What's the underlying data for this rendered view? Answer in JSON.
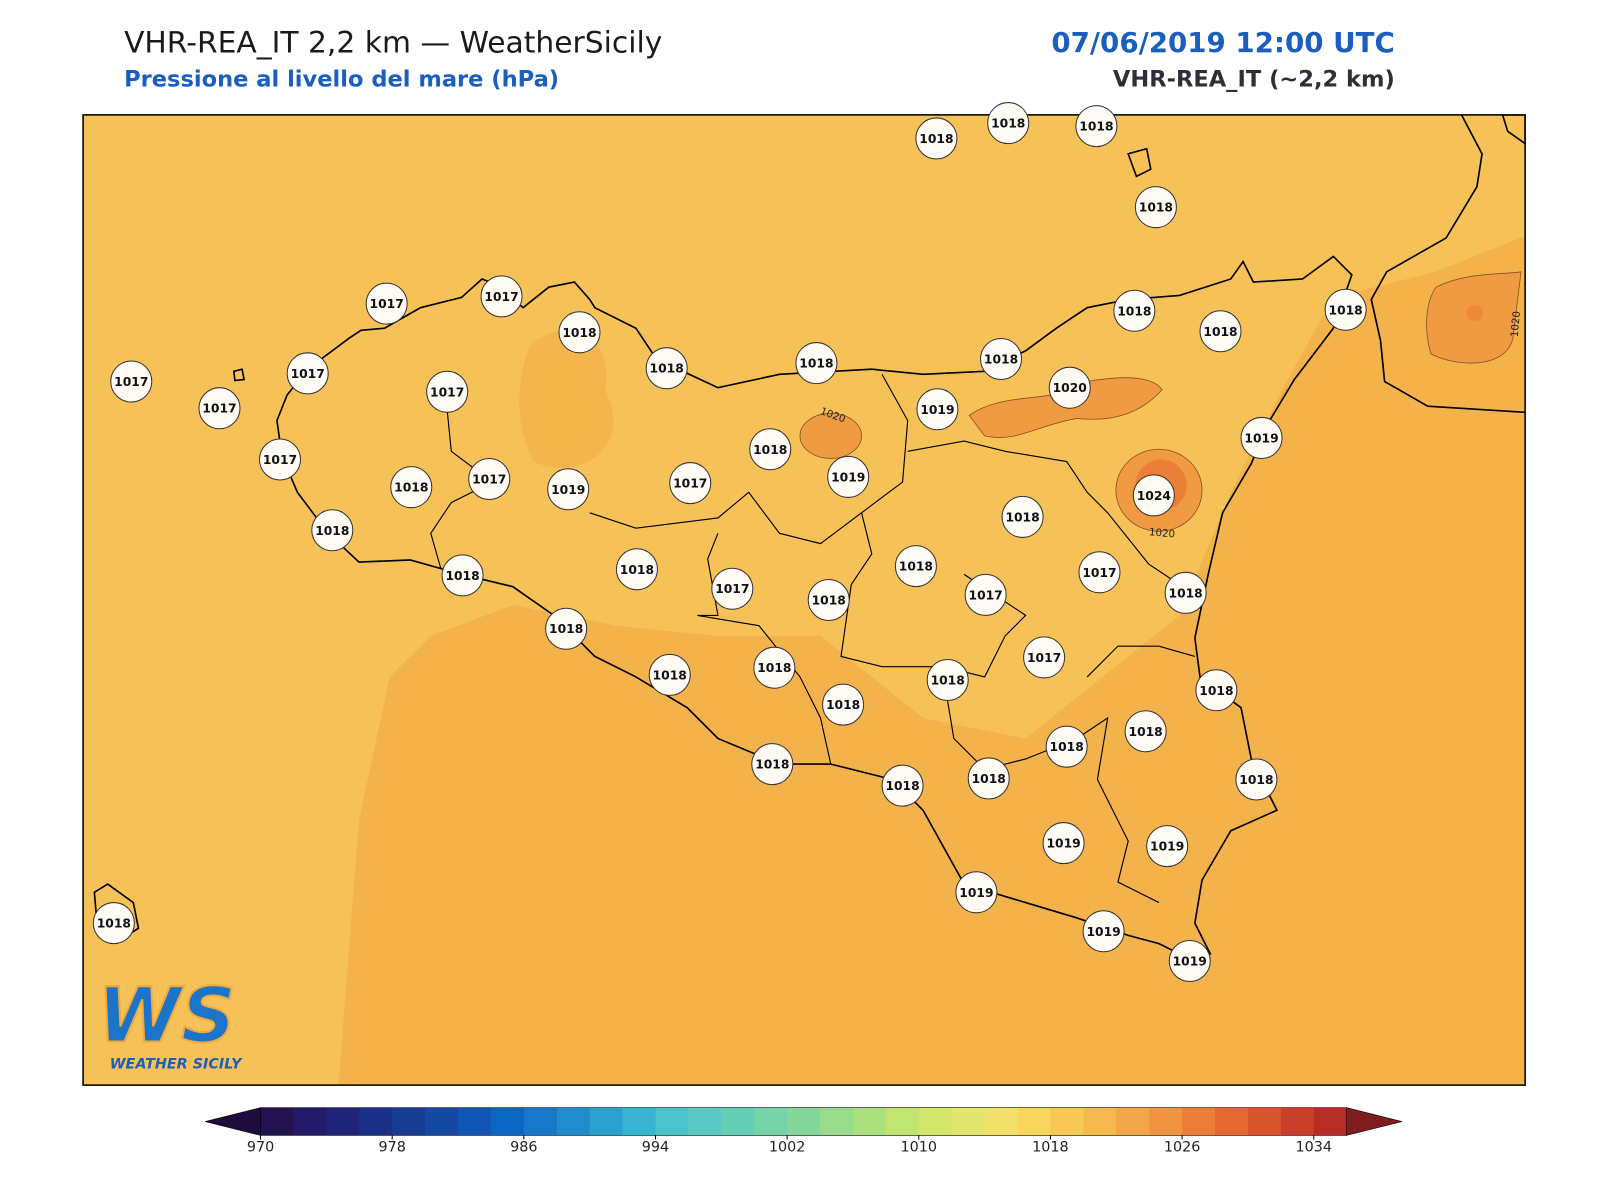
{
  "header": {
    "title": "VHR-REA_IT 2,2 km — WeatherSicily",
    "subtitle": "Pressione al livello del mare (hPa)",
    "date": "07/06/2019 12:00 UTC",
    "model": "VHR-REA_IT (~2,2 km)"
  },
  "stations": [
    1018,
    1018,
    1018,
    1018,
    1017,
    1017,
    1018,
    1018,
    1018,
    1018,
    1018,
    1018,
    1018,
    1017,
    1017,
    1017,
    1017,
    1020,
    1019,
    1019,
    1018,
    1019,
    1017,
    1018,
    1017,
    1019,
    1017,
    1024,
    1018,
    1018,
    1018,
    1018,
    1018,
    1017,
    1017,
    1018,
    1017,
    1018,
    1018,
    1017,
    1018,
    1018,
    1018,
    1018,
    1018,
    1018,
    1018,
    1018,
    1018,
    1018,
    1018,
    1019,
    1019,
    1019,
    1019,
    1019,
    1018
  ],
  "contour_labels": [
    1020,
    1020,
    1020
  ],
  "logo": {
    "mark": "WS",
    "text": "WEATHER SICILY"
  },
  "colorbar": {
    "range": [
      970,
      1036
    ],
    "ticks": [
      970,
      978,
      986,
      994,
      1002,
      1010,
      1018,
      1026,
      1034
    ],
    "colors": [
      "#22124f",
      "#231a6b",
      "#1f2478",
      "#1b2f86",
      "#173c94",
      "#1448a3",
      "#1055b3",
      "#0b66c2",
      "#1477c9",
      "#1f8bcc",
      "#2a9fd0",
      "#38b3d1",
      "#49c2cb",
      "#58cac3",
      "#65cfb6",
      "#74d4a8",
      "#84d79a",
      "#97db8b",
      "#abe07c",
      "#bfe46f",
      "#d2e66a",
      "#e2e56e",
      "#f2e26c",
      "#f9d560",
      "#f7c757",
      "#f5b84f",
      "#f3a647",
      "#f09440",
      "#ec7f38",
      "#e26a31",
      "#d6552c",
      "#c84029",
      "#b52c27"
    ],
    "under_color": "#1c0d3e",
    "over_color": "#7d1d1d"
  }
}
